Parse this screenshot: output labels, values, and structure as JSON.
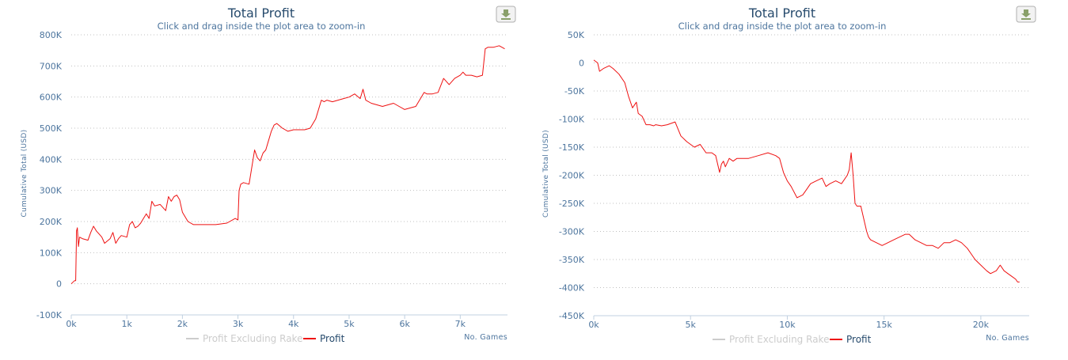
{
  "colors": {
    "profit": "#ee1111",
    "excluding_rake": "#cccccc",
    "text": "#274b6d",
    "axis_text": "#4d759e"
  },
  "icons": {
    "download": "download-icon"
  },
  "chart_data": [
    {
      "type": "line",
      "title": "Total Profit",
      "subtitle": "Click and drag inside the plot area to zoom-in",
      "xlabel": "No. Games",
      "ylabel": "Cumulative Total (USD)",
      "xlim": [
        0,
        7850
      ],
      "ylim": [
        -100000,
        800000
      ],
      "x_ticks": [
        0,
        1000,
        2000,
        3000,
        4000,
        5000,
        6000,
        7000
      ],
      "x_tick_labels": [
        "0k",
        "1k",
        "2k",
        "3k",
        "4k",
        "5k",
        "6k",
        "7k"
      ],
      "y_ticks": [
        -100000,
        0,
        100000,
        200000,
        300000,
        400000,
        500000,
        600000,
        700000,
        800000
      ],
      "y_tick_labels": [
        "-100K",
        "0",
        "100K",
        "200K",
        "300K",
        "400K",
        "500K",
        "600K",
        "700K",
        "800K"
      ],
      "grid": true,
      "legend": {
        "placement": "bottom-center",
        "items": [
          "Profit Excluding Rake",
          "Profit"
        ]
      },
      "series": [
        {
          "name": "Profit Excluding Rake",
          "visible": false,
          "x": [],
          "y": []
        },
        {
          "name": "Profit",
          "visible": true,
          "x": [
            0,
            60,
            80,
            95,
            110,
            130,
            150,
            200,
            300,
            350,
            400,
            450,
            500,
            550,
            600,
            700,
            750,
            800,
            850,
            900,
            1000,
            1050,
            1100,
            1150,
            1200,
            1250,
            1300,
            1350,
            1400,
            1450,
            1500,
            1600,
            1700,
            1750,
            1800,
            1850,
            1900,
            1950,
            2000,
            2100,
            2200,
            2400,
            2600,
            2800,
            2950,
            3000,
            3020,
            3050,
            3100,
            3200,
            3300,
            3350,
            3400,
            3450,
            3500,
            3550,
            3600,
            3650,
            3700,
            3800,
            3900,
            4000,
            4100,
            4200,
            4300,
            4400,
            4500,
            4550,
            4600,
            4700,
            4800,
            4900,
            5000,
            5100,
            5200,
            5250,
            5300,
            5400,
            5500,
            5600,
            5700,
            5800,
            5900,
            6000,
            6100,
            6200,
            6300,
            6350,
            6400,
            6500,
            6600,
            6700,
            6800,
            6900,
            7000,
            7050,
            7100,
            7200,
            7300,
            7400,
            7450,
            7500,
            7600,
            7700,
            7800
          ],
          "y": [
            0,
            10000,
            10000,
            170000,
            180000,
            120000,
            150000,
            145000,
            140000,
            165000,
            185000,
            170000,
            160000,
            150000,
            130000,
            145000,
            165000,
            130000,
            145000,
            155000,
            150000,
            190000,
            200000,
            180000,
            185000,
            195000,
            210000,
            225000,
            210000,
            265000,
            250000,
            255000,
            235000,
            280000,
            265000,
            280000,
            285000,
            270000,
            230000,
            200000,
            190000,
            190000,
            190000,
            195000,
            210000,
            205000,
            300000,
            320000,
            325000,
            320000,
            430000,
            405000,
            395000,
            420000,
            430000,
            460000,
            490000,
            510000,
            515000,
            500000,
            490000,
            495000,
            495000,
            495000,
            500000,
            530000,
            590000,
            585000,
            590000,
            585000,
            590000,
            595000,
            600000,
            610000,
            595000,
            625000,
            590000,
            580000,
            575000,
            570000,
            575000,
            580000,
            570000,
            560000,
            565000,
            570000,
            600000,
            615000,
            610000,
            610000,
            615000,
            660000,
            640000,
            660000,
            670000,
            680000,
            670000,
            670000,
            665000,
            670000,
            755000,
            760000,
            760000,
            765000,
            755000
          ]
        }
      ]
    },
    {
      "type": "line",
      "title": "Total Profit",
      "subtitle": "Click and drag inside the plot area to zoom-in",
      "xlabel": "No. Games",
      "ylabel": "Cumulative Total (USD)",
      "xlim": [
        0,
        22500
      ],
      "ylim": [
        -450000,
        50000
      ],
      "x_ticks": [
        0,
        5000,
        10000,
        15000,
        20000
      ],
      "x_tick_labels": [
        "0k",
        "5k",
        "10k",
        "15k",
        "20k"
      ],
      "y_ticks": [
        -450000,
        -400000,
        -350000,
        -300000,
        -250000,
        -200000,
        -150000,
        -100000,
        -50000,
        0,
        50000
      ],
      "y_tick_labels": [
        "-450K",
        "-400K",
        "-350K",
        "-300K",
        "-250K",
        "-200K",
        "-150K",
        "-100K",
        "-50K",
        "0",
        "50K"
      ],
      "grid": true,
      "legend": {
        "placement": "bottom-center",
        "items": [
          "Profit Excluding Rake",
          "Profit"
        ]
      },
      "series": [
        {
          "name": "Profit Excluding Rake",
          "visible": false,
          "x": [],
          "y": []
        },
        {
          "name": "Profit",
          "visible": true,
          "x": [
            0,
            200,
            300,
            500,
            800,
            1000,
            1300,
            1600,
            1800,
            2000,
            2200,
            2300,
            2500,
            2700,
            2900,
            3100,
            3200,
            3500,
            3800,
            4200,
            4500,
            4800,
            5000,
            5200,
            5500,
            5800,
            6100,
            6300,
            6500,
            6600,
            6700,
            6800,
            7000,
            7200,
            7400,
            7700,
            8000,
            8500,
            9000,
            9400,
            9600,
            9800,
            10000,
            10200,
            10500,
            10800,
            11000,
            11200,
            11500,
            11800,
            12000,
            12200,
            12500,
            12800,
            13100,
            13200,
            13300,
            13400,
            13500,
            13600,
            13800,
            14100,
            14200,
            14300,
            14600,
            14900,
            15200,
            15500,
            15800,
            16100,
            16300,
            16600,
            16900,
            17200,
            17500,
            17800,
            18100,
            18400,
            18700,
            19000,
            19300,
            19500,
            19700,
            20000,
            20300,
            20500,
            20800,
            21000,
            21100,
            21200,
            21400,
            21600,
            21800,
            21900,
            22000
          ],
          "y": [
            5000,
            0,
            -15000,
            -10000,
            -5000,
            -10000,
            -20000,
            -35000,
            -60000,
            -80000,
            -70000,
            -90000,
            -95000,
            -110000,
            -110000,
            -112000,
            -110000,
            -112000,
            -110000,
            -105000,
            -130000,
            -140000,
            -145000,
            -150000,
            -145000,
            -160000,
            -160000,
            -165000,
            -195000,
            -180000,
            -175000,
            -185000,
            -170000,
            -175000,
            -170000,
            -170000,
            -170000,
            -165000,
            -160000,
            -165000,
            -170000,
            -195000,
            -210000,
            -220000,
            -240000,
            -235000,
            -225000,
            -215000,
            -210000,
            -205000,
            -220000,
            -215000,
            -210000,
            -215000,
            -200000,
            -190000,
            -160000,
            -200000,
            -250000,
            -255000,
            -255000,
            -300000,
            -310000,
            -315000,
            -320000,
            -325000,
            -320000,
            -315000,
            -310000,
            -305000,
            -305000,
            -315000,
            -320000,
            -325000,
            -325000,
            -330000,
            -320000,
            -320000,
            -315000,
            -320000,
            -330000,
            -340000,
            -350000,
            -360000,
            -370000,
            -375000,
            -370000,
            -360000,
            -365000,
            -370000,
            -375000,
            -380000,
            -385000,
            -390000,
            -390000
          ]
        }
      ]
    }
  ]
}
